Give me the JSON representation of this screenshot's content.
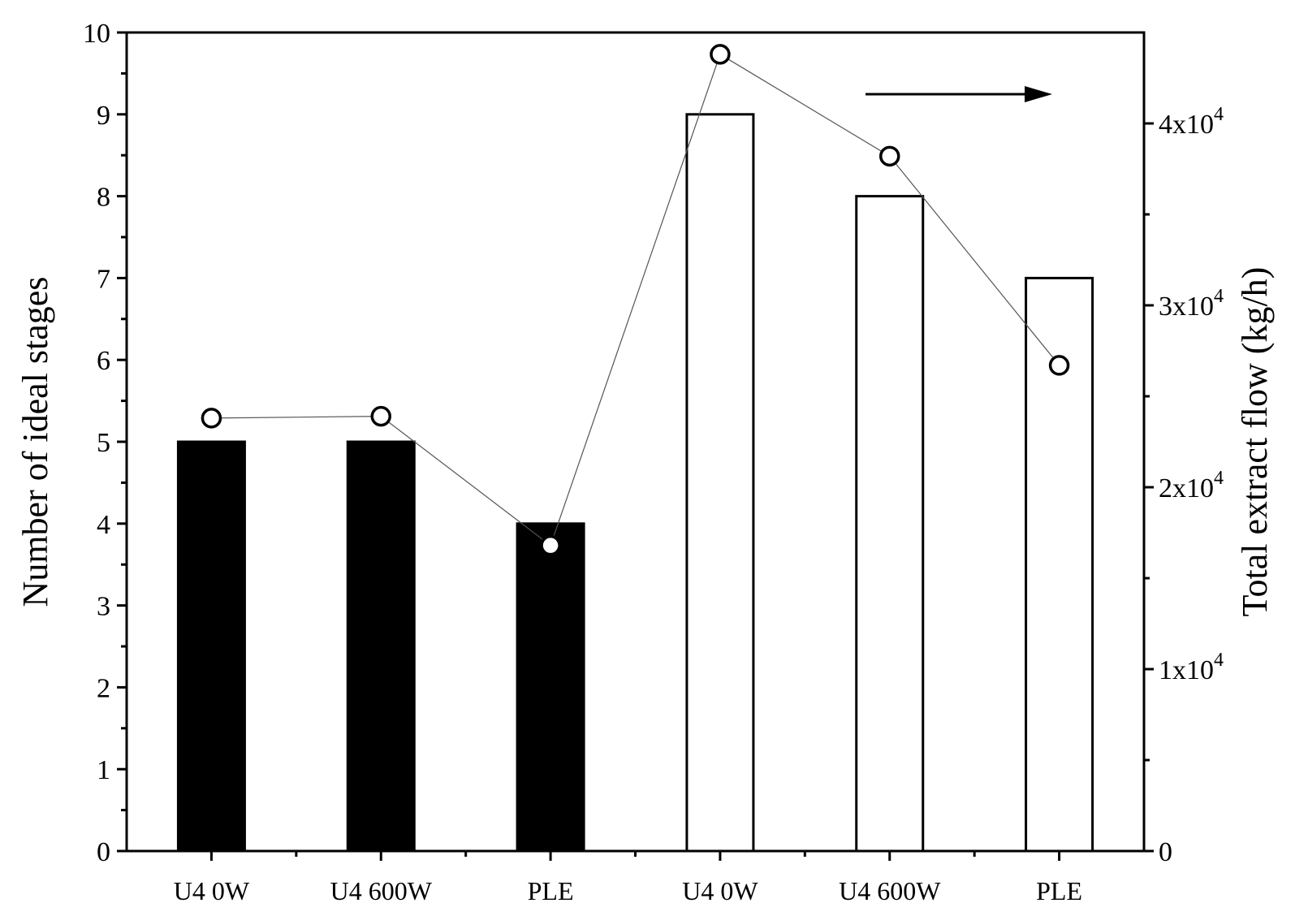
{
  "chart_data": {
    "type": "bar",
    "categories": [
      "U4 0W",
      "U4 600W",
      "PLE",
      "U4 0W",
      "U4 600W",
      "PLE"
    ],
    "series": [
      {
        "axis": "left",
        "mark": "bar",
        "values": [
          5,
          5,
          4,
          9,
          8,
          7
        ],
        "fill": [
          "#000000",
          "#000000",
          "#000000",
          "#ffffff",
          "#ffffff",
          "#ffffff"
        ]
      },
      {
        "axis": "right",
        "mark": "line-circle",
        "values": [
          23800,
          23900,
          16800,
          43800,
          38200,
          26700
        ]
      }
    ],
    "ylabel": "Number of ideal stages",
    "ylim": [
      0,
      10
    ],
    "yticks": [
      0,
      1,
      2,
      3,
      4,
      5,
      6,
      7,
      8,
      9,
      10
    ],
    "y2label": "Total extract flow (kg/h)",
    "y2lim": [
      0,
      45000
    ],
    "y2ticks": [
      {
        "value": 0,
        "mant": "0",
        "exp": ""
      },
      {
        "value": 10000,
        "mant": "1x10",
        "exp": "4"
      },
      {
        "value": 20000,
        "mant": "2x10",
        "exp": "4"
      },
      {
        "value": 30000,
        "mant": "3x10",
        "exp": "4"
      },
      {
        "value": 40000,
        "mant": "4x10",
        "exp": "4"
      }
    ],
    "annotation": "arrow pointing right toward right axis",
    "grid": false
  }
}
